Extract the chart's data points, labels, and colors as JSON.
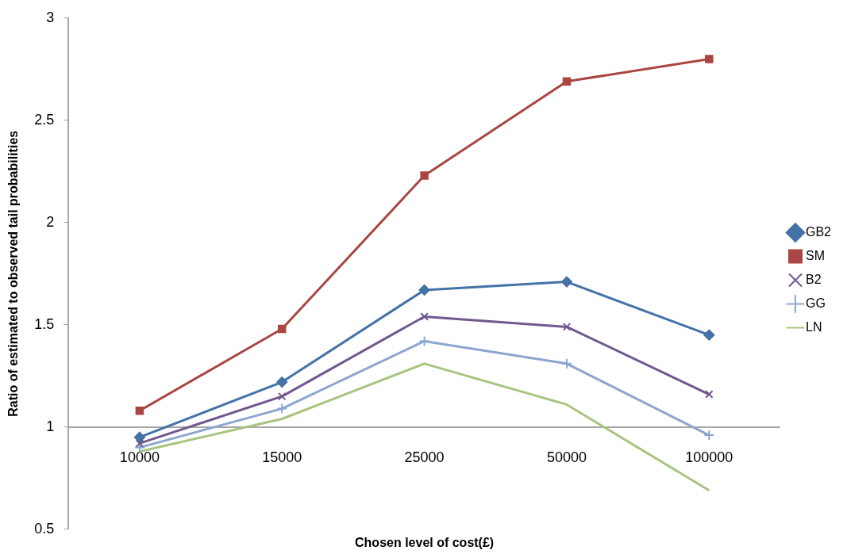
{
  "chart_data": {
    "type": "line",
    "xlabel": "Chosen level of cost(£)",
    "ylabel": "Ratio of estimated to observed tail probabilities",
    "categories": [
      "10000",
      "15000",
      "25000",
      "50000",
      "100000"
    ],
    "series": [
      {
        "name": "GB2",
        "color": "#4572a7",
        "marker": "diamond",
        "values": [
          0.95,
          1.22,
          1.67,
          1.71,
          1.45
        ]
      },
      {
        "name": "SM",
        "color": "#aa4643",
        "marker": "square",
        "values": [
          1.08,
          1.48,
          2.23,
          2.69,
          2.8
        ]
      },
      {
        "name": "B2",
        "color": "#71588f",
        "marker": "cross",
        "values": [
          0.92,
          1.15,
          1.54,
          1.49,
          1.16
        ]
      },
      {
        "name": "GG",
        "color": "#8da5d1",
        "marker": "plus",
        "values": [
          0.9,
          1.09,
          1.42,
          1.31,
          0.96
        ]
      },
      {
        "name": "LN",
        "color": "#a9c47f",
        "marker": "none",
        "values": [
          0.88,
          1.04,
          1.31,
          1.11,
          0.69
        ]
      }
    ],
    "ylim": [
      0.5,
      3
    ],
    "yticks": [
      0.5,
      1,
      1.5,
      2,
      2.5,
      3
    ],
    "grid": false,
    "legend": "right"
  }
}
